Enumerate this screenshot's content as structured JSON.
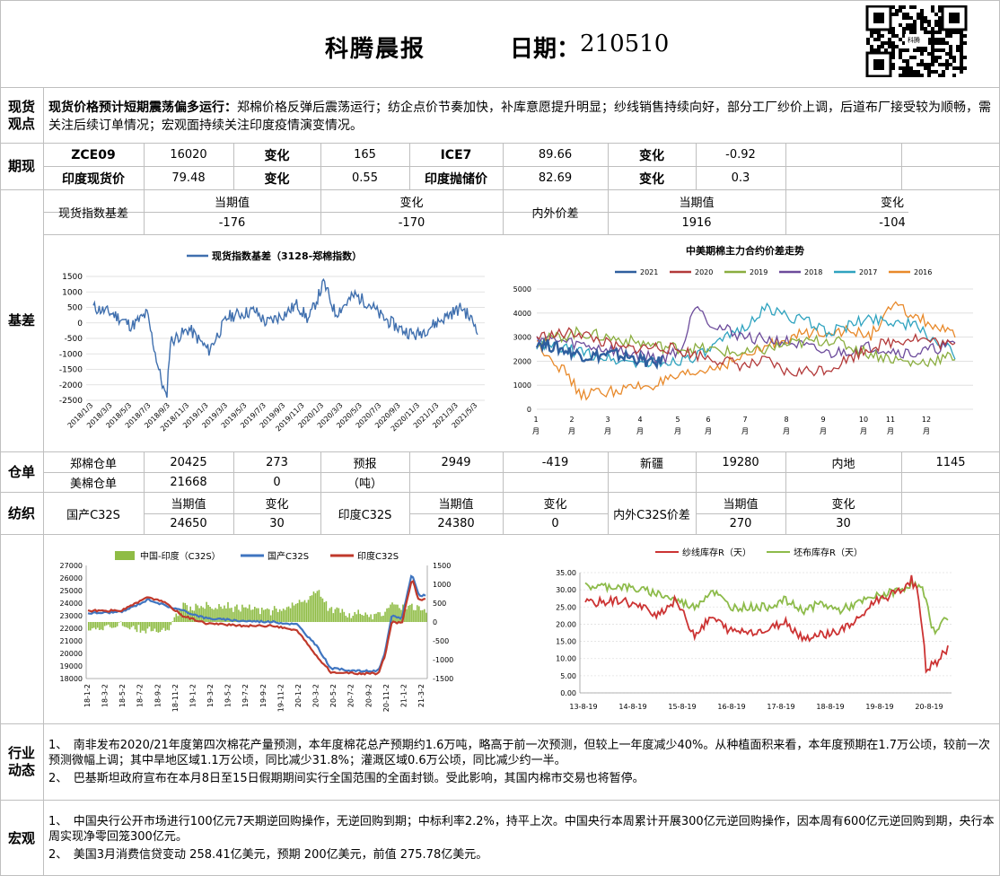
{
  "header": {
    "title": "科腾晨报",
    "date_label": "日期：",
    "date_value": "210510",
    "qr_caption": "科腾"
  },
  "sections": {
    "view": "现货\n观点",
    "futures": "期现",
    "basis": "基差",
    "warehouse": "仓单",
    "yarn": "纺织",
    "industry": "行业\n动态",
    "macro": "宏观"
  },
  "view": {
    "headline": "现货价格预计短期震荡偏多运行：",
    "body": "郑棉价格反弹后震荡运行；纺企点价节奏加快，补库意愿提升明显；纱线销售持续向好，部分工厂纱价上调，后道布厂接受较为顺畅，需关注后续订单情况；宏观面持续关注印度疫情演变情况。"
  },
  "futures": {
    "rows": [
      [
        "ZCE09",
        "16020",
        "变化",
        "165",
        "ICE7",
        "89.66",
        "变化",
        "-0.92"
      ],
      [
        "印度现货价",
        "79.48",
        "变化",
        "0.55",
        "印度抛储价",
        "82.69",
        "变化",
        "0.3"
      ]
    ]
  },
  "basis_table": {
    "h_current": "当期值",
    "h_change": "变化",
    "label1": "现货指数基差",
    "v1": "-176",
    "c1": "-170",
    "label2": "内外价差",
    "v2": "1916",
    "c2": "-104"
  },
  "chart1": {
    "legend": "现货指数基差（3128-郑棉指数）",
    "color": "#3f6fae",
    "yticks": [
      "1500",
      "1000",
      "500",
      "0",
      "-500",
      "-1000",
      "-1500",
      "-2000",
      "-2500"
    ],
    "xticks": [
      "2018/1/3",
      "2018/3/3",
      "2018/5/3",
      "2018/7/3",
      "2018/9/3",
      "2018/11/3",
      "2019/1/3",
      "2019/3/3",
      "2019/5/3",
      "2019/7/3",
      "2019/9/3",
      "2019/11/3",
      "2020/1/3",
      "2020/3/3",
      "2020/5/3",
      "2020/7/3",
      "2020/9/3",
      "2020/11/3",
      "2021/1/3",
      "2021/3/3",
      "2021/5/3"
    ]
  },
  "chart2": {
    "title": "中美期棉主力合约价差走势",
    "yticks": [
      "5000",
      "4000",
      "3000",
      "2000",
      "1000",
      "0"
    ],
    "xticks": [
      "1",
      "2",
      "3",
      "4",
      "5",
      "6",
      "7",
      "8",
      "9",
      "10",
      "11",
      "12"
    ],
    "xunit": "月",
    "series": [
      {
        "name": "2021",
        "color": "#2e5e9e"
      },
      {
        "name": "2020",
        "color": "#b33a3a"
      },
      {
        "name": "2019",
        "color": "#8aad3f"
      },
      {
        "name": "2018",
        "color": "#6c4b9b"
      },
      {
        "name": "2017",
        "color": "#2fa3bf"
      },
      {
        "name": "2016",
        "color": "#e8892a"
      }
    ]
  },
  "warehouse": {
    "r1": [
      "郑棉仓单",
      "20425",
      "273",
      "预报",
      "2949",
      "-419",
      "新疆",
      "19280",
      "内地",
      "1145"
    ],
    "r2": [
      "美棉仓单",
      "21668",
      "0",
      "（吨）"
    ]
  },
  "yarn": {
    "h_current": "当期值",
    "h_change": "变化",
    "domestic": "国产C32S",
    "d_val": "24650",
    "d_chg": "30",
    "india": "印度C32S",
    "i_val": "24380",
    "i_chg": "0",
    "spread": "内外C32S价差",
    "s_val": "270",
    "s_chg": "30"
  },
  "chart3": {
    "legend": [
      "中国-印度（C32S）",
      "国产C32S",
      "印度C32S"
    ],
    "colors": [
      "#8fbc45",
      "#3f75c0",
      "#c0392b"
    ],
    "yticks": [
      "27000",
      "26000",
      "25000",
      "24000",
      "23000",
      "22000",
      "21000",
      "20000",
      "19000",
      "18000"
    ],
    "y2ticks": [
      "1500",
      "1000",
      "500",
      "0",
      "-500",
      "-1000",
      "-1500"
    ],
    "xticks": [
      "18-1-2",
      "18-3-2",
      "18-5-2",
      "18-7-2",
      "18-9-2",
      "18-11-2",
      "19-1-2",
      "19-3-2",
      "19-5-2",
      "19-7-2",
      "19-9-2",
      "19-11-2",
      "20-1-2",
      "20-3-2",
      "20-5-2",
      "20-7-2",
      "20-9-2",
      "20-11-2",
      "21-1-2",
      "21-3-2"
    ]
  },
  "chart4": {
    "legend": [
      "纱线库存R（天）",
      "坯布库存R（天）"
    ],
    "colors": [
      "#cc3333",
      "#8dbb4a"
    ],
    "yticks": [
      "35.00",
      "30.00",
      "25.00",
      "20.00",
      "15.00",
      "10.00",
      "5.00",
      "0.00"
    ],
    "xticks": [
      "13-8-19",
      "14-8-19",
      "15-8-19",
      "16-8-19",
      "17-8-19",
      "18-8-19",
      "19-8-19",
      "20-8-19"
    ]
  },
  "industry": {
    "p1": "1、　南非发布2020/21年度第四次棉花产量预测，本年度棉花总产预期约1.6万吨，略高于前一次预测，但较上一年度减少40%。从种植面积来看，本年度预期在1.7万公顷，较前一次预测微幅上调；其中旱地区域1.1万公顷，同比减少31.8%；灌溉区域0.6万公顷，同比减少约一半。",
    "p2": "2、　巴基斯坦政府宣布在本月8日至15日假期期间实行全国范围的全面封锁。受此影响，其国内棉市交易也将暂停。"
  },
  "macro": {
    "p1": "1、　中国央行公开市场进行100亿元7天期逆回购操作，无逆回购到期；中标利率2.2%，持平上次。中国央行本周累计开展300亿元逆回购操作，因本周有600亿元逆回购到期，央行本周实现净零回笼300亿元。",
    "p2": "2、　美国3月消费信贷变动 258.41亿美元，预期 200亿美元，前值 275.78亿美元。"
  }
}
